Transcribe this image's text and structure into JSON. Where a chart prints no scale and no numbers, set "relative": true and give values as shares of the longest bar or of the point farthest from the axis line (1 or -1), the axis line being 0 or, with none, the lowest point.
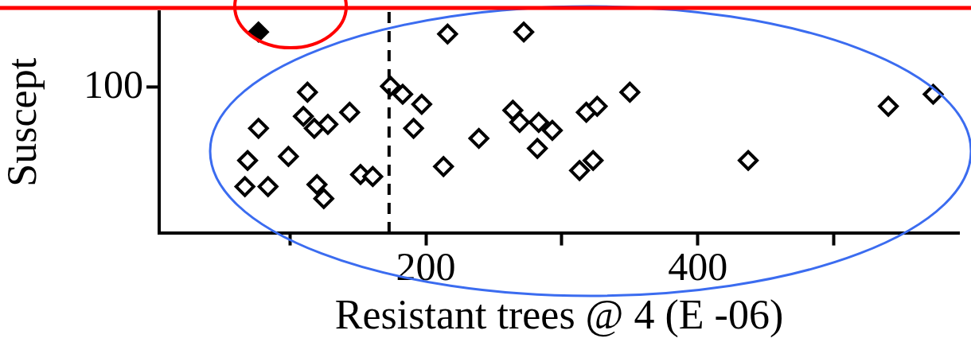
{
  "chart_data": {
    "type": "scatter",
    "xlabel": "Resistant trees @ 4 (E -06)",
    "ylabel": "Suscept",
    "relative": true,
    "annotations": [
      "100"
    ],
    "xlim": [
      4,
      592
    ],
    "xticks": [
      {
        "value": 100,
        "label": null
      },
      200,
      {
        "value": 300,
        "label": null
      },
      400,
      {
        "value": 500,
        "label": null
      }
    ],
    "grid": false,
    "legend": false,
    "marker": "diamond",
    "ref_lines": [
      {
        "axis": "x",
        "value": 173,
        "label": null,
        "color": "#000000",
        "line_style": "dashed"
      }
    ],
    "series": [
      {
        "color": "#000000",
        "x": [
          113,
          110,
          128,
          118,
          144,
          77,
          69,
          67,
          84,
          99,
          120,
          125,
          152,
          161,
          174,
          183,
          197,
          191,
          216,
          272,
          213,
          239,
          264,
          269,
          283,
          293,
          282,
          318,
          326,
          350,
          313,
          323,
          437,
          540,
          573
        ],
        "values": [
          0.7,
          0.58,
          0.54,
          0.52,
          0.6,
          0.52,
          0.36,
          0.23,
          0.23,
          0.38,
          0.24,
          0.17,
          0.29,
          0.28,
          0.73,
          0.69,
          0.64,
          0.52,
          0.99,
          1,
          0.33,
          0.47,
          0.61,
          0.55,
          0.55,
          0.51,
          0.42,
          0.6,
          0.63,
          0.7,
          0.31,
          0.36,
          0.36,
          0.63,
          0.69
        ]
      },
      {
        "color": "#000000",
        "x": [
          77
        ],
        "values": [
          1
        ]
      }
    ]
  }
}
